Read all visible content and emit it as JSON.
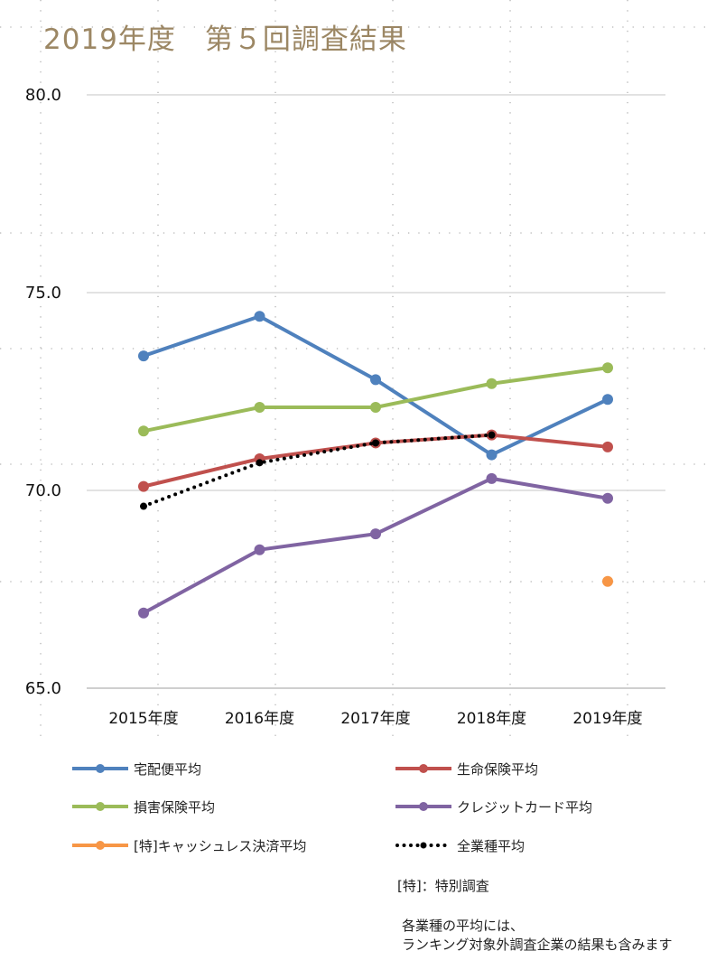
{
  "chart_data": {
    "type": "line",
    "title": "2019年度　第５回調査結果",
    "categories": [
      "2015年度",
      "2016年度",
      "2017年度",
      "2018年度",
      "2019年度"
    ],
    "ylim": [
      65.0,
      80.0
    ],
    "yticks": [
      "80.0",
      "75.0",
      "70.0",
      "65.0"
    ],
    "ytick_values": [
      80,
      75,
      70,
      65
    ],
    "grid": true,
    "legend_position": "bottom",
    "series": [
      {
        "name": "宅配便平均",
        "color": "#4F81BD",
        "style": "solid",
        "values": [
          73.4,
          74.4,
          72.8,
          70.9,
          72.3
        ]
      },
      {
        "name": "生命保険平均",
        "color": "#C0504D",
        "style": "solid",
        "values": [
          70.1,
          70.8,
          71.2,
          71.4,
          71.1
        ]
      },
      {
        "name": "損害保険平均",
        "color": "#9BBB59",
        "style": "solid",
        "values": [
          71.5,
          72.1,
          72.1,
          72.7,
          73.1
        ]
      },
      {
        "name": "クレジットカード平均",
        "color": "#8064A2",
        "style": "solid",
        "values": [
          66.9,
          68.5,
          68.9,
          70.3,
          69.8
        ]
      },
      {
        "name": "[特]キャッシュレス決済平均",
        "color": "#F79646",
        "style": "point",
        "values": [
          null,
          null,
          null,
          null,
          67.7
        ]
      },
      {
        "name": "全業種平均",
        "color": "#000000",
        "style": "dotted",
        "values": [
          69.6,
          70.7,
          71.2,
          71.4,
          null
        ]
      }
    ]
  },
  "notes": {
    "special": "[特]：特別調査",
    "avg_line1": "各業種の平均には、",
    "avg_line2": "ランキング対象外調査企業の結果も含みます"
  }
}
